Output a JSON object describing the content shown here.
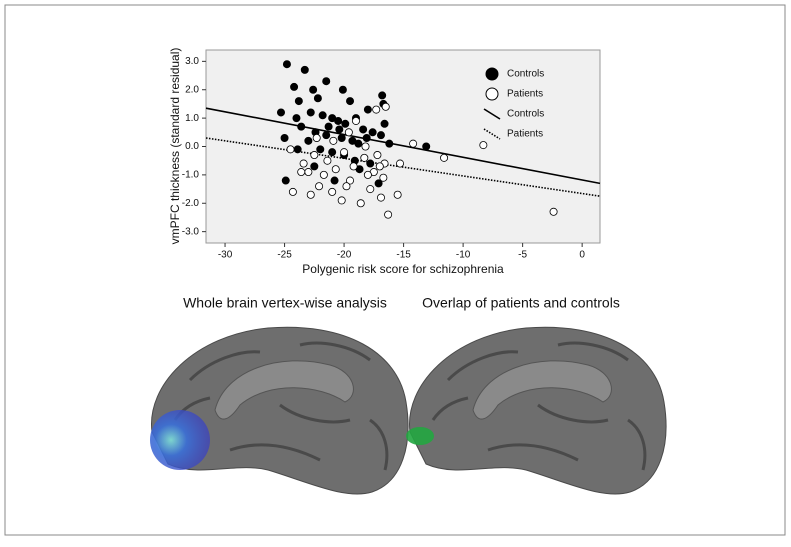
{
  "chart_data": {
    "type": "scatter",
    "x_label": "Polygenic risk score for schizophrenia",
    "y_label": "vmPFC thickness (standard residual)",
    "xlim": [
      -31.6,
      1.5
    ],
    "ylim": [
      -3.4,
      3.4
    ],
    "xticks": [
      -30,
      -25,
      -20,
      -15,
      -10,
      -5,
      0
    ],
    "yticks": [
      {
        "value": 3,
        "label": "3.0"
      },
      {
        "value": 2,
        "label": "2.0"
      },
      {
        "value": 1,
        "label": "1.0"
      },
      {
        "value": 0,
        "label": "0.0"
      },
      {
        "value": -1,
        "label": "-1.0"
      },
      {
        "value": -2,
        "label": "-2.0"
      },
      {
        "value": -3,
        "label": "-3.0"
      }
    ],
    "legend": "upper right",
    "series": [
      {
        "name": "Controls",
        "color": "#000000",
        "marker": "filled",
        "x": [
          -24.8,
          -23.3,
          -21.5,
          -24.2,
          -22.6,
          -20.1,
          -25.3,
          -23.8,
          -22.2,
          -19.5,
          -18.0,
          -16.8,
          -16.7,
          -24.0,
          -22.8,
          -21.8,
          -21.0,
          -20.5,
          -19.9,
          -19.0,
          -18.4,
          -17.6,
          -16.6,
          -23.6,
          -22.4,
          -21.5,
          -20.2,
          -19.3,
          -18.1,
          -16.9,
          -25.0,
          -23.0,
          -22.0,
          -21.0,
          -20.0,
          -19.1,
          -17.8,
          -16.2,
          -13.1,
          -24.9,
          -22.5,
          -20.8,
          -17.1,
          -18.7,
          -23.9,
          -21.3,
          -20.4,
          -18.8
        ],
        "values": [
          2.9,
          2.7,
          2.3,
          2.1,
          2.0,
          2.0,
          1.2,
          1.6,
          1.7,
          1.6,
          1.3,
          1.8,
          1.5,
          1.0,
          1.2,
          1.1,
          1.0,
          0.9,
          0.8,
          1.0,
          0.6,
          0.5,
          0.8,
          0.7,
          0.5,
          0.4,
          0.3,
          0.2,
          0.3,
          0.4,
          0.3,
          0.2,
          -0.1,
          -0.2,
          -0.3,
          -0.5,
          -0.6,
          0.1,
          0.0,
          -1.2,
          -0.7,
          -1.2,
          -1.3,
          -0.8,
          -0.1,
          0.7,
          0.6,
          0.1
        ]
      },
      {
        "name": "Patients",
        "color": "#000000",
        "marker": "open",
        "x": [
          -17.3,
          -16.5,
          -19.0,
          -14.2,
          -11.6,
          -8.3,
          -2.4,
          -24.3,
          -23.0,
          -22.1,
          -21.0,
          -20.2,
          -19.5,
          -18.6,
          -17.8,
          -16.9,
          -16.3,
          -15.5,
          -15.3,
          -16.6,
          -17.5,
          -18.3,
          -19.2,
          -20.0,
          -21.4,
          -22.5,
          -23.4,
          -23.6,
          -22.8,
          -21.7,
          -20.7,
          -19.8,
          -18.0,
          -17.2,
          -16.7,
          -24.5,
          -20.9,
          -19.6,
          -18.2,
          -22.3,
          -17.0
        ],
        "values": [
          1.3,
          1.4,
          0.9,
          0.1,
          -0.4,
          0.05,
          -2.3,
          -1.6,
          -0.9,
          -1.4,
          -1.6,
          -1.9,
          -1.2,
          -2.0,
          -1.5,
          -1.8,
          -2.4,
          -1.7,
          -0.6,
          -0.6,
          -0.9,
          -0.4,
          -0.7,
          -0.2,
          -0.5,
          -0.3,
          -0.6,
          -0.9,
          -1.7,
          -1.0,
          -0.8,
          -1.4,
          -1.0,
          -0.3,
          -1.1,
          -0.1,
          0.2,
          0.5,
          0.0,
          0.3,
          -0.7
        ]
      }
    ],
    "fit_lines": [
      {
        "name": "Controls",
        "color": "#000000",
        "style": "solid",
        "x": [
          -31.6,
          1.5
        ],
        "values": [
          1.35,
          -1.3
        ]
      },
      {
        "name": "Patients",
        "color": "#000000",
        "style": "dotted",
        "x": [
          -31.6,
          1.5
        ],
        "values": [
          0.3,
          -1.75
        ]
      }
    ]
  },
  "brain_panels": [
    {
      "title": "Whole brain vertex-wise analysis",
      "highlight": "#3a6fd8"
    },
    {
      "title": "Overlap of patients and controls",
      "highlight": "#22a640"
    }
  ]
}
